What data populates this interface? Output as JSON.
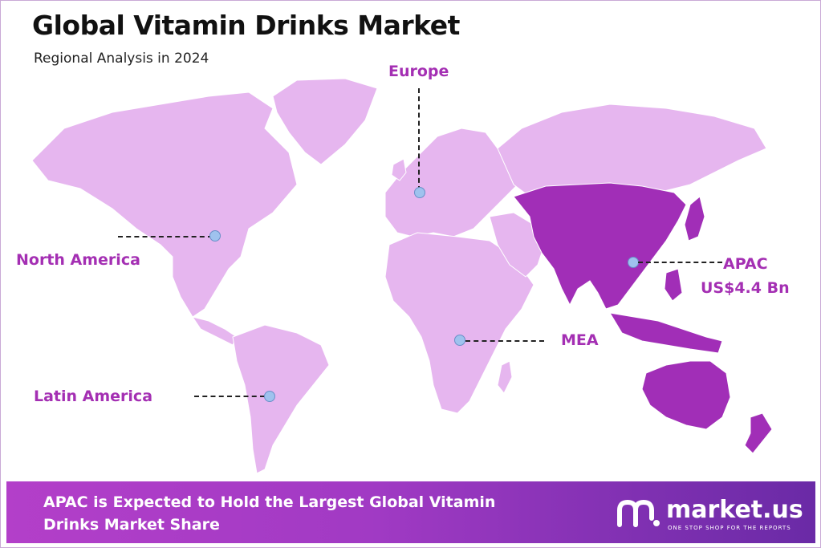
{
  "header": {
    "title": "Global Vitamin Drinks Market",
    "subtitle": "Regional Analysis in 2024"
  },
  "colors": {
    "land": "#e6b6ef",
    "apac": "#a12eb7",
    "label": "#a42fb3",
    "marker": "#9fc2ee"
  },
  "regions": {
    "europe": "Europe",
    "north_america": "North America",
    "apac": "APAC",
    "apac_value": "US$4.4 Bn",
    "mea": "MEA",
    "latin_america": "Latin America"
  },
  "banner": {
    "line1": "APAC is Expected to Hold the Largest Global Vitamin",
    "line2": "Drinks Market Share"
  },
  "logo": {
    "name": "market.us",
    "tagline": "ONE STOP SHOP FOR THE REPORTS"
  }
}
